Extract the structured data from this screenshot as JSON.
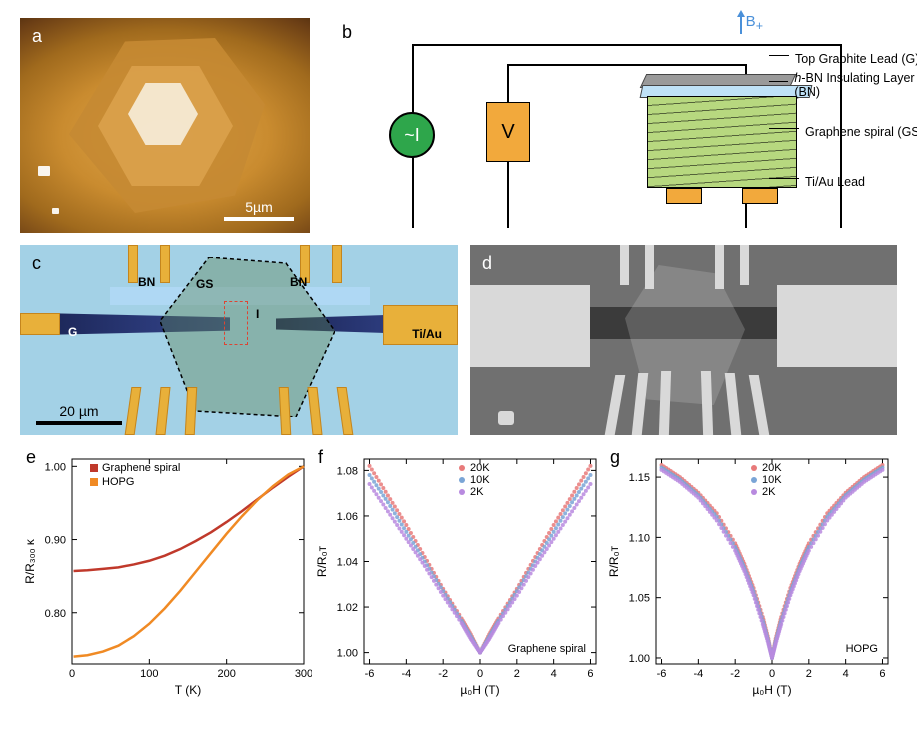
{
  "panelLabels": {
    "a": "a",
    "b": "b",
    "c": "c",
    "d": "d",
    "e": "e",
    "f": "f",
    "g": "g"
  },
  "panel_a": {
    "scale_label": "5µm",
    "background_gradient": [
      "#e2a84c",
      "#c98b2f",
      "#a06a1d",
      "#6b3e15",
      "#2e1705"
    ],
    "scalebar_color": "#ffffff"
  },
  "panel_b": {
    "bfield_label": "B",
    "bfield_sub": "+",
    "bfield_color": "#4a90d9",
    "source_label": "~I",
    "source_color": "#2ea64b",
    "meter_label": "V",
    "meter_color": "#f2a93c",
    "annotations": {
      "top_lead": "Top Graphite Lead (G)",
      "bn": "h-BN Insulating Layer (BN)",
      "spiral": "Graphene spiral (GS)",
      "tiau": "Ti/Au Lead"
    },
    "colors": {
      "toplead": "#9a9a9a",
      "bn": "#bfe2f7",
      "spiral": "#b7d87f",
      "tiau": "#f2a93c",
      "wire": "#000000"
    }
  },
  "panel_c": {
    "labels": {
      "G": "G",
      "BN": "BN",
      "GS": "GS",
      "I": "I",
      "TiAu": "Ti/Au"
    },
    "scale_label": "20 µm",
    "substrate_color": "#a3d1e6",
    "finger_color": "#e8b03a",
    "glead_color": "#2b3a7a",
    "flake_tint": "rgba(90,130,80,0.38)",
    "dashed_box_color": "#d43b3b"
  },
  "panel_d": {
    "background": "#707070",
    "pad_color": "#d9d9d9",
    "dark_color": "#3b3b3b"
  },
  "chart_e": {
    "type": "line",
    "xaxis": {
      "title": "T (K)",
      "lim": [
        0,
        300
      ],
      "ticks": [
        0,
        100,
        200,
        300
      ]
    },
    "yaxis": {
      "title": "R/R₃₀₀ ᴋ",
      "lim": [
        0.73,
        1.01
      ],
      "ticks": [
        0.8,
        0.9,
        1.0
      ]
    },
    "series": [
      {
        "name": "Graphene spiral",
        "color": "#c0392b",
        "x": [
          2,
          20,
          40,
          60,
          80,
          100,
          120,
          140,
          160,
          180,
          200,
          220,
          240,
          260,
          280,
          300
        ],
        "y": [
          0.857,
          0.858,
          0.86,
          0.862,
          0.866,
          0.871,
          0.878,
          0.887,
          0.898,
          0.91,
          0.924,
          0.939,
          0.955,
          0.971,
          0.986,
          1.0
        ]
      },
      {
        "name": "HOPG",
        "color": "#f08a24",
        "x": [
          2,
          20,
          40,
          60,
          80,
          100,
          120,
          140,
          160,
          180,
          200,
          220,
          240,
          260,
          280,
          300
        ],
        "y": [
          0.74,
          0.742,
          0.747,
          0.755,
          0.768,
          0.785,
          0.806,
          0.83,
          0.856,
          0.882,
          0.908,
          0.932,
          0.954,
          0.973,
          0.989,
          1.0
        ]
      }
    ],
    "label_fontsize": 12,
    "background": "#ffffff"
  },
  "chart_f": {
    "type": "scatter",
    "title_in": "Graphene spiral",
    "xaxis": {
      "title": "µ₀H (T)",
      "lim": [
        -6.3,
        6.3
      ],
      "ticks": [
        -6,
        -4,
        -2,
        0,
        2,
        4,
        6
      ]
    },
    "yaxis": {
      "title": "R/R₀ᴛ",
      "lim": [
        0.995,
        1.085
      ],
      "ticks": [
        1.0,
        1.02,
        1.04,
        1.06,
        1.08
      ]
    },
    "legend": [
      {
        "name": "20K",
        "color": "#e87a7a"
      },
      {
        "name": "10K",
        "color": "#7aa5d6"
      },
      {
        "name": "2K",
        "color": "#b88adf"
      }
    ],
    "series": [
      {
        "name": "20K",
        "color": "#e87a7a",
        "H": [
          -6,
          -5,
          -4,
          -3,
          -2,
          -1,
          -0.5,
          0,
          0.5,
          1,
          2,
          3,
          4,
          5,
          6
        ],
        "R": [
          1.082,
          1.069,
          1.056,
          1.042,
          1.028,
          1.015,
          1.008,
          1.0,
          1.008,
          1.015,
          1.028,
          1.042,
          1.056,
          1.069,
          1.082
        ]
      },
      {
        "name": "10K",
        "color": "#7aa5d6",
        "H": [
          -6,
          -5,
          -4,
          -3,
          -2,
          -1,
          -0.5,
          0,
          0.5,
          1,
          2,
          3,
          4,
          5,
          6
        ],
        "R": [
          1.078,
          1.066,
          1.053,
          1.04,
          1.027,
          1.014,
          1.007,
          1.0,
          1.007,
          1.014,
          1.027,
          1.04,
          1.053,
          1.066,
          1.078
        ]
      },
      {
        "name": "2K",
        "color": "#b88adf",
        "H": [
          -6,
          -5,
          -4,
          -3,
          -2,
          -1,
          -0.5,
          0,
          0.5,
          1,
          2,
          3,
          4,
          5,
          6
        ],
        "R": [
          1.074,
          1.062,
          1.05,
          1.038,
          1.025,
          1.013,
          1.006,
          1.0,
          1.006,
          1.013,
          1.025,
          1.038,
          1.05,
          1.062,
          1.074
        ]
      }
    ],
    "marker_size": 2
  },
  "chart_g": {
    "type": "scatter",
    "title_in": "HOPG",
    "xaxis": {
      "title": "µ₀H (T)",
      "lim": [
        -6.3,
        6.3
      ],
      "ticks": [
        -6,
        -4,
        -2,
        0,
        2,
        4,
        6
      ]
    },
    "yaxis": {
      "title": "R/R₀ᴛ",
      "lim": [
        0.995,
        1.165
      ],
      "ticks": [
        1.0,
        1.05,
        1.1,
        1.15
      ]
    },
    "legend": [
      {
        "name": "20K",
        "color": "#e87a7a"
      },
      {
        "name": "10K",
        "color": "#7aa5d6"
      },
      {
        "name": "2K",
        "color": "#b88adf"
      }
    ],
    "series": [
      {
        "name": "20K",
        "color": "#e87a7a",
        "H": [
          -6,
          -5,
          -4,
          -3,
          -2,
          -1.5,
          -1,
          -0.5,
          -0.2,
          0,
          0.2,
          0.5,
          1,
          1.5,
          2,
          3,
          4,
          5,
          6
        ],
        "R": [
          1.16,
          1.15,
          1.137,
          1.12,
          1.095,
          1.078,
          1.058,
          1.034,
          1.016,
          1.0,
          1.016,
          1.034,
          1.058,
          1.078,
          1.095,
          1.12,
          1.137,
          1.15,
          1.16
        ]
      },
      {
        "name": "10K",
        "color": "#7aa5d6",
        "H": [
          -6,
          -5,
          -4,
          -3,
          -2,
          -1.5,
          -1,
          -0.5,
          -0.2,
          0,
          0.2,
          0.5,
          1,
          1.5,
          2,
          3,
          4,
          5,
          6
        ],
        "R": [
          1.158,
          1.148,
          1.135,
          1.117,
          1.092,
          1.075,
          1.055,
          1.031,
          1.014,
          1.0,
          1.014,
          1.031,
          1.055,
          1.075,
          1.092,
          1.117,
          1.135,
          1.148,
          1.158
        ]
      },
      {
        "name": "2K",
        "color": "#b88adf",
        "H": [
          -6,
          -5,
          -4,
          -3,
          -2,
          -1.5,
          -1,
          -0.5,
          -0.2,
          0,
          0.2,
          0.5,
          1,
          1.5,
          2,
          3,
          4,
          5,
          6
        ],
        "R": [
          1.156,
          1.146,
          1.133,
          1.114,
          1.089,
          1.072,
          1.052,
          1.028,
          1.012,
          1.0,
          1.012,
          1.028,
          1.052,
          1.072,
          1.089,
          1.114,
          1.133,
          1.146,
          1.156
        ]
      }
    ],
    "marker_size": 2
  }
}
